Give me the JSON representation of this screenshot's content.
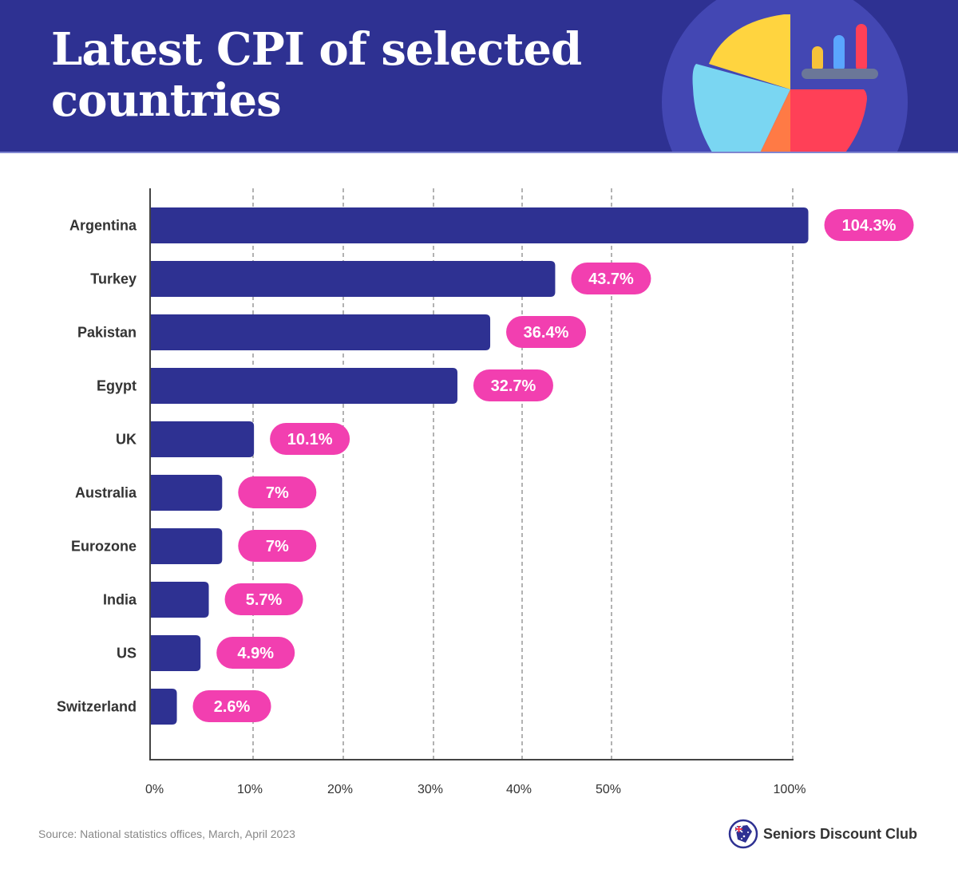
{
  "header": {
    "title": "Latest CPI of selected countries",
    "hero_icon": "pie-chart-bar-chart-illustration"
  },
  "colors": {
    "header_bg": "#2e3192",
    "bar": "#2e3192",
    "pill": "#f23fb0",
    "hero_circle": "#4347b3",
    "pie_yellow": "#ffd43f",
    "pie_lightblue": "#7ad6f2",
    "pie_red": "#ff4057",
    "pie_orange": "#ff7a45",
    "mini_bar_yellow": "#f6c23a",
    "mini_bar_blue": "#5aa6ff",
    "mini_bar_red": "#ff4057",
    "mini_base": "#6b7798"
  },
  "chart_data": {
    "type": "bar",
    "orientation": "horizontal",
    "title": "Latest CPI of selected countries",
    "xlabel": "",
    "ylabel": "",
    "categories": [
      "Argentina",
      "Turkey",
      "Pakistan",
      "Egypt",
      "UK",
      "Australia",
      "Eurozone",
      "India",
      "US",
      "Switzerland"
    ],
    "values": [
      104.3,
      43.7,
      36.4,
      32.7,
      10.1,
      7,
      7,
      5.7,
      4.9,
      2.6
    ],
    "value_labels": [
      "104.3%",
      "43.7%",
      "36.4%",
      "32.7%",
      "10.1%",
      "7%",
      "7%",
      "5.7%",
      "4.9%",
      "2.6%"
    ],
    "x_ticks": [
      0,
      10,
      20,
      30,
      40,
      50,
      100
    ],
    "x_tick_labels": [
      "0%",
      "10%",
      "20%",
      "30%",
      "40%",
      "50%",
      "100%"
    ],
    "x_scale": "non-linear (gap between 50% and 100% compressed)",
    "xlim": [
      0,
      100
    ],
    "grid": "vertical dashed",
    "legend": "none"
  },
  "footer": {
    "source": "Source:  National statistics offices, March, April 2023",
    "brand_name": "Seniors Discount Club",
    "brand_icon": "australian-flag-tag-logo"
  }
}
